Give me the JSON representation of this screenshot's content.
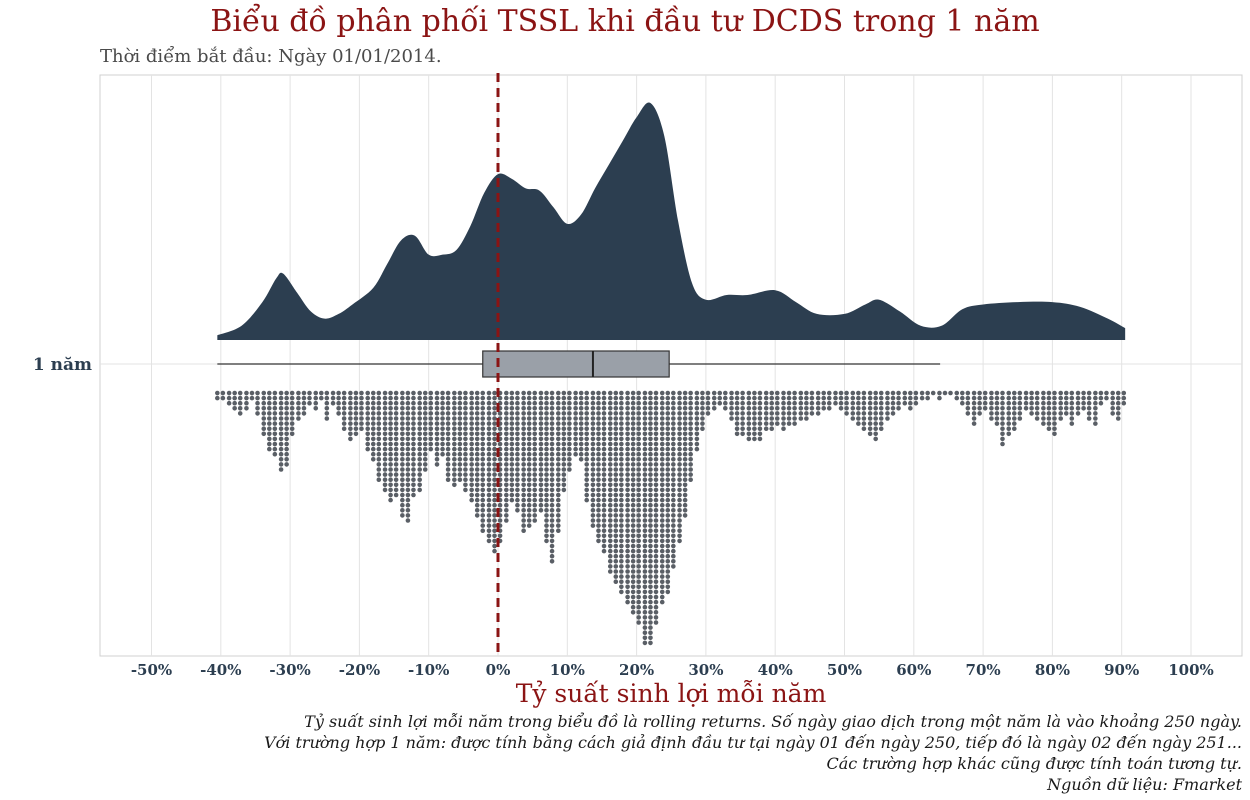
{
  "title": "Biểu đồ phân phối TSSL khi đầu tư DCDS trong 1 năm",
  "subtitle": "Thời điểm bắt đầu: Ngày 01/01/2014.",
  "captions": [
    "Tỷ suất sinh lợi mỗi năm trong biểu đồ là rolling returns. Số ngày giao dịch trong một năm là vào khoảng 250 ngày.",
    "Với trường hợp 1 năm: được tính bằng cách giả định đầu tư tại ngày 01 đến ngày 250, tiếp đó là ngày 02 đến ngày 251...",
    "Các trường hợp khác cũng được tính toán tương tự.",
    "Nguồn dữ liệu: Fmarket"
  ],
  "colors": {
    "title": "#8b1414",
    "density_fill": "#2c3e50",
    "box_fill": "#9aa0a8",
    "dots": "#5a5f66",
    "ref_line": "#8b1414",
    "grid": "#e3e3e3",
    "axis_text": "#2c3e50"
  },
  "chart_data": {
    "type": "raincloud",
    "title": "Biểu đồ phân phối TSSL khi đầu tư DCDS trong 1 năm",
    "xlabel": "Tỷ suất sinh lợi mỗi năm",
    "ylabel": "",
    "category": "1 năm",
    "xlim": [
      -57,
      107
    ],
    "x_ticks": [
      -50,
      -40,
      -30,
      -20,
      -10,
      0,
      10,
      20,
      30,
      40,
      50,
      60,
      70,
      80,
      90,
      100
    ],
    "x_tick_labels": [
      "-50%",
      "-40%",
      "-30%",
      "-20%",
      "-10%",
      "0%",
      "10%",
      "20%",
      "30%",
      "40%",
      "50%",
      "60%",
      "70%",
      "80%",
      "90%",
      "100%"
    ],
    "reference_line_x": 0,
    "boxplot": {
      "whisker_low": -40.5,
      "q1": -2.2,
      "median": 13.7,
      "q3": 24.7,
      "whisker_high": 63.8
    },
    "density": {
      "x": [
        -40.5,
        -37,
        -34,
        -32,
        -31,
        -29,
        -27,
        -25,
        -23,
        -21,
        -18,
        -16,
        -14,
        -12,
        -10,
        -8,
        -6,
        -4,
        -2,
        0,
        2,
        4,
        6,
        8,
        10,
        12,
        14,
        16,
        18,
        20,
        22,
        24,
        26,
        28,
        30,
        33,
        36,
        40,
        43,
        46,
        50,
        53,
        55,
        58,
        61,
        64,
        67,
        70,
        75,
        80,
        84,
        88,
        90.5
      ],
      "y": [
        0.02,
        0.06,
        0.16,
        0.26,
        0.28,
        0.2,
        0.12,
        0.09,
        0.11,
        0.15,
        0.22,
        0.32,
        0.42,
        0.44,
        0.36,
        0.36,
        0.38,
        0.48,
        0.62,
        0.7,
        0.68,
        0.64,
        0.63,
        0.56,
        0.49,
        0.53,
        0.64,
        0.74,
        0.84,
        0.94,
        1.0,
        0.86,
        0.5,
        0.24,
        0.17,
        0.19,
        0.19,
        0.21,
        0.16,
        0.11,
        0.11,
        0.15,
        0.17,
        0.12,
        0.06,
        0.06,
        0.13,
        0.15,
        0.16,
        0.16,
        0.14,
        0.09,
        0.05
      ]
    },
    "dot_histogram": {
      "x": [
        -40.5,
        -39.7,
        -38.8,
        -38.0,
        -37.2,
        -36.3,
        -35.5,
        -34.7,
        -33.8,
        -33.0,
        -32.2,
        -31.3,
        -30.5,
        -29.7,
        -28.8,
        -28.0,
        -27.2,
        -26.3,
        -25.5,
        -24.7,
        -23.8,
        -23.0,
        -22.2,
        -21.3,
        -20.5,
        -19.7,
        -18.8,
        -18.0,
        -17.2,
        -16.3,
        -15.5,
        -14.7,
        -13.8,
        -13.0,
        -12.2,
        -11.3,
        -10.5,
        -9.7,
        -8.8,
        -8.0,
        -7.2,
        -6.3,
        -5.5,
        -4.7,
        -3.8,
        -3.0,
        -2.2,
        -1.3,
        -0.5,
        0.3,
        1.2,
        2.0,
        2.8,
        3.7,
        4.5,
        5.3,
        6.2,
        7.0,
        7.8,
        8.7,
        9.5,
        10.3,
        11.2,
        12.0,
        12.8,
        13.7,
        14.5,
        15.3,
        16.2,
        17.0,
        17.8,
        18.7,
        19.5,
        20.3,
        21.2,
        22.0,
        22.8,
        23.7,
        24.5,
        25.3,
        26.2,
        27.0,
        27.8,
        28.7,
        29.5,
        30.3,
        31.2,
        32.0,
        32.8,
        33.7,
        34.5,
        35.3,
        36.2,
        37.0,
        37.8,
        38.7,
        39.5,
        40.3,
        41.2,
        42.0,
        42.8,
        43.7,
        44.5,
        45.3,
        46.2,
        47.0,
        47.8,
        48.7,
        49.5,
        50.3,
        51.2,
        52.0,
        52.8,
        53.7,
        54.5,
        55.3,
        56.2,
        57.0,
        57.8,
        58.7,
        59.5,
        60.3,
        61.2,
        62.0,
        62.8,
        63.7,
        64.5,
        65.3,
        66.2,
        67.0,
        67.8,
        68.7,
        69.5,
        70.3,
        71.2,
        72.0,
        72.8,
        73.7,
        74.5,
        75.3,
        76.2,
        77.0,
        77.8,
        78.7,
        79.5,
        80.3,
        81.2,
        82.0,
        82.8,
        83.7,
        84.5,
        85.3,
        86.2,
        87.0,
        87.8,
        88.7,
        89.5,
        90.3
      ],
      "counts": [
        2,
        2,
        3,
        4,
        5,
        4,
        2,
        5,
        9,
        12,
        13,
        16,
        15,
        9,
        6,
        5,
        3,
        4,
        2,
        6,
        3,
        5,
        8,
        10,
        9,
        8,
        12,
        14,
        18,
        20,
        22,
        21,
        25,
        26,
        21,
        20,
        16,
        12,
        15,
        13,
        18,
        19,
        18,
        20,
        22,
        25,
        28,
        30,
        32,
        30,
        26,
        22,
        24,
        28,
        27,
        26,
        24,
        30,
        34,
        28,
        20,
        16,
        13,
        14,
        22,
        27,
        30,
        32,
        36,
        38,
        40,
        42,
        44,
        46,
        50,
        50,
        46,
        42,
        40,
        35,
        30,
        25,
        18,
        12,
        8,
        5,
        4,
        3,
        4,
        6,
        9,
        9,
        10,
        10,
        10,
        8,
        8,
        7,
        8,
        7,
        7,
        6,
        6,
        5,
        5,
        4,
        4,
        3,
        4,
        5,
        6,
        7,
        8,
        9,
        10,
        8,
        6,
        5,
        4,
        3,
        4,
        3,
        2,
        2,
        1,
        2,
        1,
        1,
        2,
        3,
        5,
        7,
        5,
        4,
        6,
        7,
        11,
        9,
        8,
        6,
        4,
        5,
        6,
        7,
        8,
        9,
        6,
        5,
        7,
        5,
        4,
        6,
        7,
        3,
        2,
        5,
        6,
        3
      ]
    }
  }
}
